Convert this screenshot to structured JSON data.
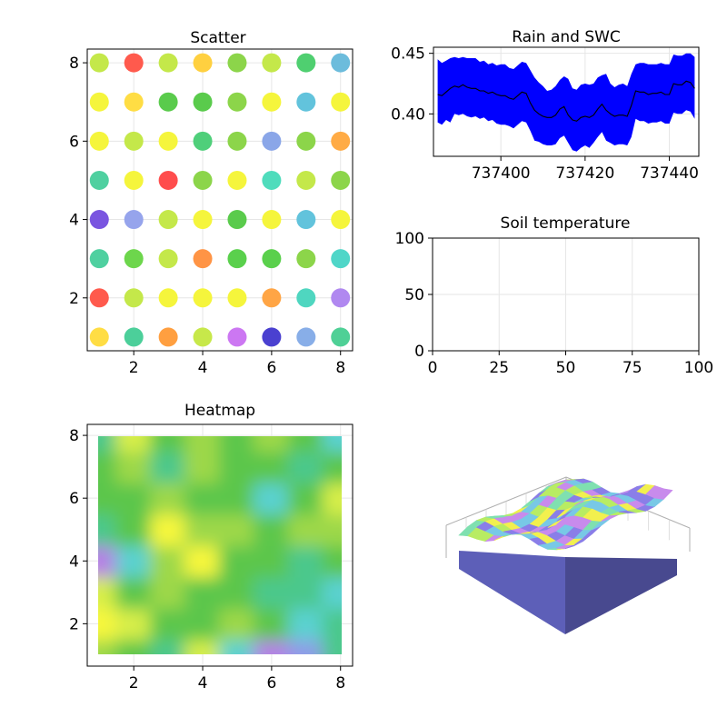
{
  "chart_data": [
    {
      "type": "scatter",
      "title": "Scatter",
      "xlim": [
        0.65,
        8.35
      ],
      "ylim": [
        0.65,
        8.35
      ],
      "x_ticks": [
        2,
        4,
        6,
        8
      ],
      "y_ticks": [
        2,
        4,
        6,
        8
      ],
      "grid": true,
      "colormap": [
        "#3d2bd1",
        "#6a5ae0",
        "#8fa6e8",
        "#62c3dc",
        "#4fd6b4",
        "#3bcf83",
        "#52c94c",
        "#8cd545",
        "#c4e846",
        "#f7f73e",
        "#ffe04a",
        "#ffab45",
        "#ff8a45",
        "#ff5b4c",
        "#c97af5"
      ],
      "point_colors": [
        [
          "#ffdd44",
          "#4ccf9a",
          "#ff9f40",
          "#c7e84a",
          "#cc77f2",
          "#4a40d0",
          "#88aee8",
          "#4fd096"
        ],
        [
          "#ff5a4d",
          "#c4e84a",
          "#f5f53c",
          "#f5f53c",
          "#f5f53c",
          "#ffa545",
          "#4fd6c0",
          "#b088f0"
        ],
        [
          "#4fd0a0",
          "#6dd64c",
          "#c4e84a",
          "#ff9445",
          "#5ad04c",
          "#5ad04c",
          "#8cd54a",
          "#4fd6c8"
        ],
        [
          "#7a55e0",
          "#96a4ec",
          "#c4e84a",
          "#f5f53c",
          "#5acb4c",
          "#f5f53c",
          "#62c3dc",
          "#f5f53c"
        ],
        [
          "#4fd0a0",
          "#f5f53c",
          "#ff4d4d",
          "#8cd54a",
          "#f5f53c",
          "#4fdcbc",
          "#c4e84a",
          "#8cd54a"
        ],
        [
          "#f5f53c",
          "#c4e84a",
          "#f5f53c",
          "#4fcf7a",
          "#8cd54a",
          "#8aa6e8",
          "#8cd54a",
          "#ffab45"
        ],
        [
          "#f5f53c",
          "#ffdd44",
          "#5acb4c",
          "#5acb4c",
          "#8cd54a",
          "#f5f53c",
          "#62c3dc",
          "#f5f53c"
        ],
        [
          "#c4e84a",
          "#ff5a4d",
          "#c4e84a",
          "#ffd040",
          "#8cd54a",
          "#c4e84a",
          "#4fcf70",
          "#6cbcdc"
        ]
      ]
    },
    {
      "type": "area",
      "title": "Rain and SWC",
      "xlim": [
        737384,
        737447
      ],
      "ylim": [
        0.365,
        0.455
      ],
      "x_ticks": [
        737400,
        737420,
        737440
      ],
      "y_ticks": [
        0.4,
        0.45
      ],
      "y_tick_labels": [
        "0.40",
        "0.45"
      ],
      "x_start": 737385,
      "x_step": 1,
      "center": [
        0.416,
        0.415,
        0.418,
        0.421,
        0.423,
        0.422,
        0.424,
        0.422,
        0.421,
        0.421,
        0.419,
        0.419,
        0.417,
        0.418,
        0.416,
        0.415,
        0.415,
        0.413,
        0.412,
        0.415,
        0.418,
        0.417,
        0.409,
        0.403,
        0.4,
        0.398,
        0.397,
        0.397,
        0.399,
        0.404,
        0.406,
        0.399,
        0.395,
        0.394,
        0.397,
        0.398,
        0.397,
        0.399,
        0.404,
        0.408,
        0.403,
        0.4,
        0.398,
        0.399,
        0.399,
        0.398,
        0.407,
        0.419,
        0.418,
        0.418,
        0.416,
        0.417,
        0.417,
        0.418,
        0.416,
        0.416,
        0.425,
        0.424,
        0.424,
        0.427,
        0.426,
        0.421
      ],
      "upper": [
        0.445,
        0.442,
        0.444,
        0.446,
        0.447,
        0.446,
        0.447,
        0.446,
        0.446,
        0.446,
        0.443,
        0.444,
        0.441,
        0.442,
        0.44,
        0.441,
        0.441,
        0.438,
        0.437,
        0.44,
        0.443,
        0.442,
        0.436,
        0.43,
        0.426,
        0.423,
        0.419,
        0.42,
        0.423,
        0.428,
        0.431,
        0.429,
        0.421,
        0.42,
        0.424,
        0.425,
        0.424,
        0.425,
        0.43,
        0.432,
        0.433,
        0.425,
        0.422,
        0.424,
        0.425,
        0.423,
        0.433,
        0.441,
        0.442,
        0.442,
        0.441,
        0.441,
        0.441,
        0.442,
        0.441,
        0.441,
        0.449,
        0.448,
        0.448,
        0.45,
        0.45,
        0.447
      ],
      "lower": [
        0.393,
        0.391,
        0.395,
        0.393,
        0.4,
        0.399,
        0.4,
        0.398,
        0.397,
        0.398,
        0.396,
        0.397,
        0.394,
        0.395,
        0.392,
        0.391,
        0.391,
        0.39,
        0.388,
        0.391,
        0.394,
        0.393,
        0.386,
        0.378,
        0.377,
        0.375,
        0.374,
        0.374,
        0.375,
        0.38,
        0.382,
        0.376,
        0.37,
        0.369,
        0.372,
        0.374,
        0.372,
        0.376,
        0.381,
        0.385,
        0.378,
        0.376,
        0.374,
        0.375,
        0.375,
        0.374,
        0.381,
        0.396,
        0.394,
        0.394,
        0.392,
        0.393,
        0.393,
        0.394,
        0.392,
        0.392,
        0.401,
        0.4,
        0.4,
        0.403,
        0.402,
        0.396
      ],
      "band_color": "#0000ff",
      "line_color": "#000000"
    },
    {
      "type": "line",
      "title": "Soil temperature",
      "xlim": [
        0,
        100
      ],
      "ylim": [
        0,
        100
      ],
      "x_ticks": [
        0,
        25,
        50,
        75,
        100
      ],
      "y_ticks": [
        0,
        50,
        100
      ],
      "grid": true,
      "series": []
    },
    {
      "type": "heatmap",
      "title": "Heatmap",
      "xlim": [
        0.65,
        8.35
      ],
      "ylim": [
        0.65,
        8.35
      ],
      "x_ticks": [
        2,
        4,
        6,
        8
      ],
      "y_ticks": [
        2,
        4,
        6,
        8
      ],
      "colormap": [
        "#b67fe6",
        "#8f9be8",
        "#5ad1d0",
        "#4bc88c",
        "#5cc64b",
        "#9dd84a",
        "#d7ee4a",
        "#f7f73e"
      ],
      "z": [
        [
          5,
          4,
          3,
          6,
          2,
          0,
          1,
          3
        ],
        [
          7,
          6,
          4,
          4,
          5,
          4,
          2,
          3
        ],
        [
          6,
          4,
          5,
          4,
          4,
          3,
          3,
          2
        ],
        [
          0,
          2,
          5,
          7,
          4,
          4,
          3,
          4
        ],
        [
          3,
          4,
          7,
          5,
          5,
          4,
          5,
          5
        ],
        [
          4,
          4,
          5,
          4,
          4,
          2,
          4,
          6
        ],
        [
          4,
          5,
          3,
          5,
          4,
          4,
          3,
          4
        ],
        [
          3,
          6,
          4,
          5,
          4,
          5,
          4,
          2
        ]
      ]
    },
    {
      "type": "surface",
      "title": "",
      "colormap": [
        "#8a7ee8",
        "#78c8e6",
        "#7fe0b0",
        "#b8ec63",
        "#f2f04e",
        "#c88bec"
      ],
      "side_color": "#5d5fb8",
      "side_dark_color": "#48498f"
    }
  ]
}
